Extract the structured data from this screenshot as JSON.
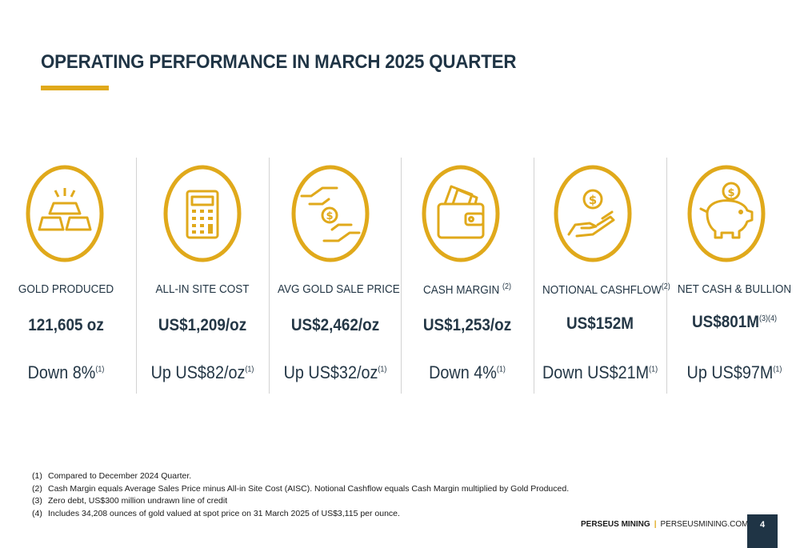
{
  "slide": {
    "title": "OPERATING PERFORMANCE IN MARCH 2025 QUARTER",
    "accent_color": "#e0a91b",
    "text_color": "#243746"
  },
  "metrics": [
    {
      "icon": "gold-bars-icon",
      "label": "GOLD PRODUCED",
      "label_sup": "",
      "value": "121,605 oz",
      "value_sup": "",
      "change": "Down 8%",
      "change_sup": "(1)"
    },
    {
      "icon": "calculator-icon",
      "label": "ALL-IN SITE COST",
      "label_sup": "",
      "value": "US$1,209/oz",
      "value_sup": "",
      "change": "Up US$82/oz",
      "change_sup": "(1)"
    },
    {
      "icon": "coin-exchange-hands-icon",
      "label": "AVG GOLD SALE PRICE",
      "label_sup": "",
      "value": "US$2,462/oz",
      "value_sup": "",
      "change": "Up US$32/oz",
      "change_sup": "(1)"
    },
    {
      "icon": "wallet-cash-icon",
      "label": "CASH MARGIN",
      "label_sup": "(2)",
      "value": "US$1,253/oz",
      "value_sup": "",
      "change": "Down 4%",
      "change_sup": "(1)"
    },
    {
      "icon": "hand-coin-icon",
      "label": "NOTIONAL CASHFLOW",
      "label_sup": "(2)",
      "value": "US$152M",
      "value_sup": "",
      "change": "Down US$21M",
      "change_sup": "(1)"
    },
    {
      "icon": "piggy-bank-icon",
      "label": "NET CASH & BULLION",
      "label_sup": "",
      "value": "US$801M",
      "value_sup": "(3)(4)",
      "change": "Up US$97M",
      "change_sup": "(1)"
    }
  ],
  "footnotes": [
    {
      "num": "(1)",
      "text": "Compared to December 2024 Quarter."
    },
    {
      "num": "(2)",
      "text": "Cash Margin equals Average Sales Price minus All-in Site Cost (AISC). Notional Cashflow equals Cash Margin multiplied by Gold Produced."
    },
    {
      "num": "(3)",
      "text": "Zero debt, US$300 million undrawn line of credit"
    },
    {
      "num": "(4)",
      "text": "Includes 34,208 ounces of gold valued at spot price on 31 March 2025 of US$3,115 per ounce."
    }
  ],
  "footer": {
    "brand": "PERSEUS MINING",
    "separator": "|",
    "website": "PERSEUSMINING.COM",
    "page_number": "4"
  }
}
